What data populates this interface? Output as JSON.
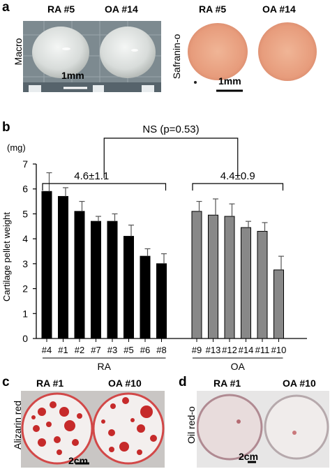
{
  "panel_a": {
    "letter": "a",
    "macro": {
      "labels": [
        "RA #5",
        "OA #14"
      ],
      "side_label": "Macro",
      "scale_label": "1mm"
    },
    "stain": {
      "labels": [
        "RA #5",
        "OA #14"
      ],
      "side_label": "Safranin-o",
      "scale_label": "1mm"
    }
  },
  "panel_b": {
    "letter": "b"
  },
  "panel_c": {
    "letter": "c",
    "labels": [
      "RA #1",
      "OA #10"
    ],
    "side_label": "Alizarin red",
    "scale_label": "2cm"
  },
  "panel_d": {
    "letter": "d",
    "labels": [
      "RA #1",
      "OA #10"
    ],
    "side_label": "Oil red-o",
    "scale_label": "2cm"
  },
  "chart_data": {
    "type": "bar",
    "ylabel": "Cartilage pellet weight",
    "unit_label": "(mg)",
    "ylim": [
      0,
      7
    ],
    "yticks": [
      0,
      1,
      2,
      3,
      4,
      5,
      6,
      7
    ],
    "groups": [
      {
        "name": "RA",
        "color": "#000000",
        "categories": [
          "#4",
          "#1",
          "#2",
          "#7",
          "#3",
          "#5",
          "#6",
          "#8"
        ],
        "values": [
          5.9,
          5.7,
          5.1,
          4.7,
          4.7,
          4.1,
          3.3,
          3.0
        ],
        "errors": [
          0.75,
          0.35,
          0.4,
          0.2,
          0.3,
          0.45,
          0.3,
          0.4
        ],
        "summary": "4.6±1.1"
      },
      {
        "name": "OA",
        "color": "#888888",
        "categories": [
          "#9",
          "#13",
          "#12",
          "#14",
          "#11",
          "#10"
        ],
        "values": [
          5.1,
          4.95,
          4.9,
          4.45,
          4.3,
          2.75
        ],
        "errors": [
          0.4,
          0.65,
          0.5,
          0.25,
          0.35,
          0.55
        ],
        "summary": "4.4±0.9"
      }
    ],
    "comparison": "NS (p=0.53)"
  }
}
